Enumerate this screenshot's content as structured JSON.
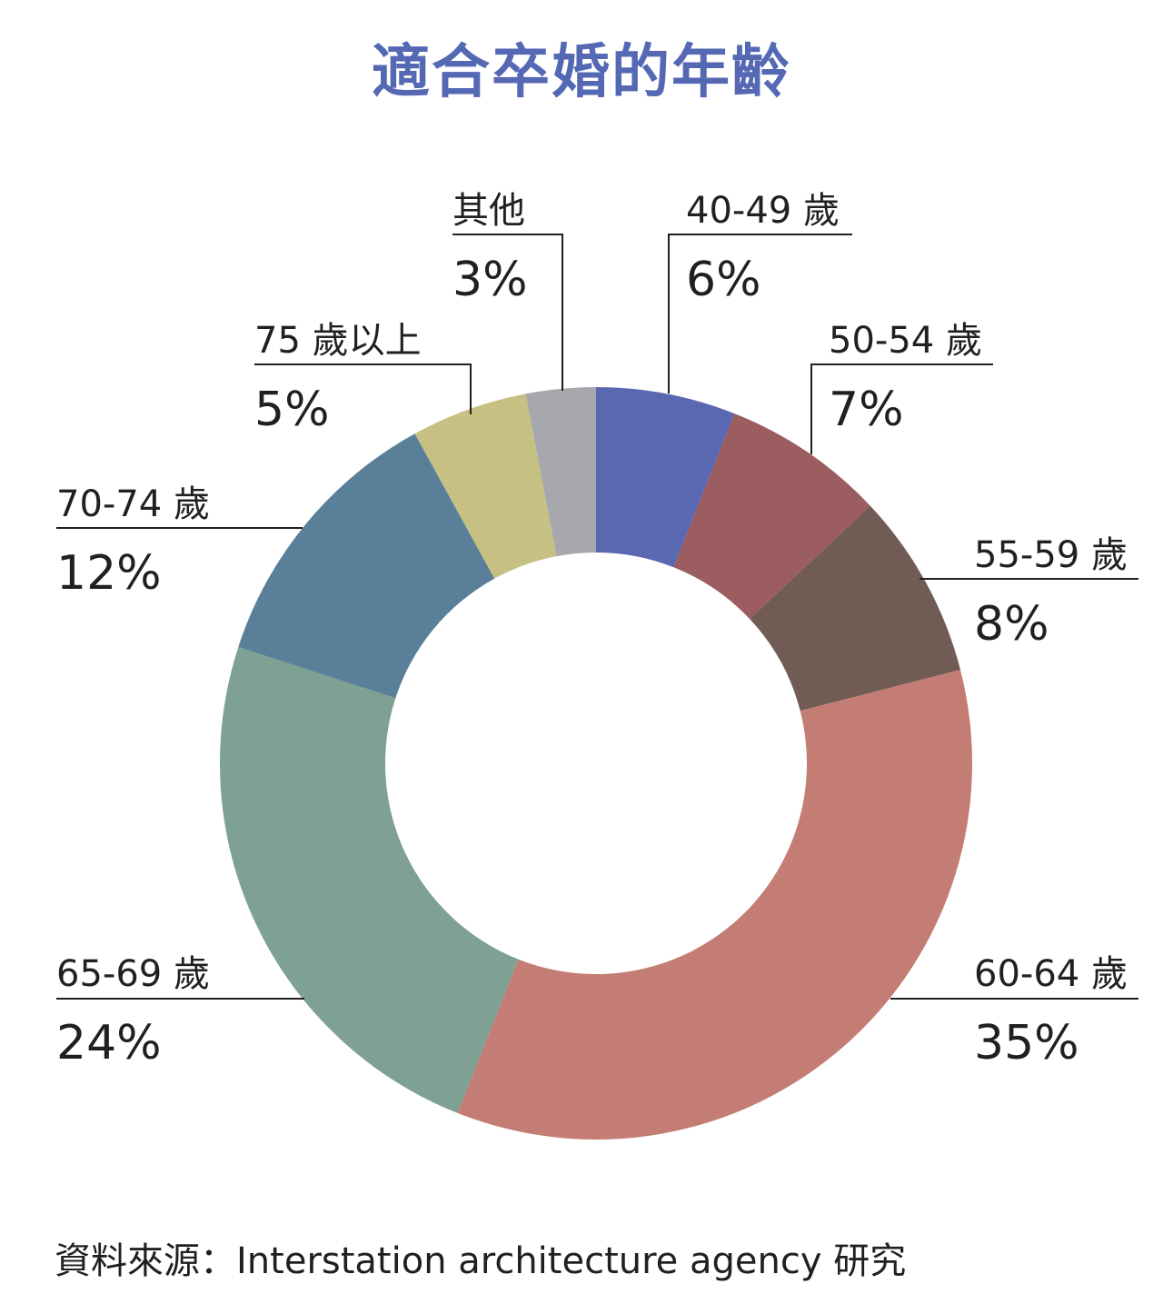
{
  "chart_data": {
    "type": "pie",
    "title": "適合卒婚的年齡",
    "donut": true,
    "slices": [
      {
        "label": "40-49 歲",
        "value": 6,
        "value_label": "6%",
        "color": "#5a67b1"
      },
      {
        "label": "50-54 歲",
        "value": 7,
        "value_label": "7%",
        "color": "#9b5d5f"
      },
      {
        "label": "55-59 歲",
        "value": 8,
        "value_label": "8%",
        "color": "#705b55"
      },
      {
        "label": "60-64 歲",
        "value": 35,
        "value_label": "35%",
        "color": "#c47d75"
      },
      {
        "label": "65-69 歲",
        "value": 24,
        "value_label": "24%",
        "color": "#7fa194"
      },
      {
        "label": "70-74 歲",
        "value": 12,
        "value_label": "12%",
        "color": "#5a8099"
      },
      {
        "label": "75 歲以上",
        "value": 5,
        "value_label": "5%",
        "color": "#c6c083"
      },
      {
        "label": "其他",
        "value": 3,
        "value_label": "3%",
        "color": "#a7a8ad"
      }
    ],
    "source": "資料來源：Interstation architecture agency 研究"
  }
}
